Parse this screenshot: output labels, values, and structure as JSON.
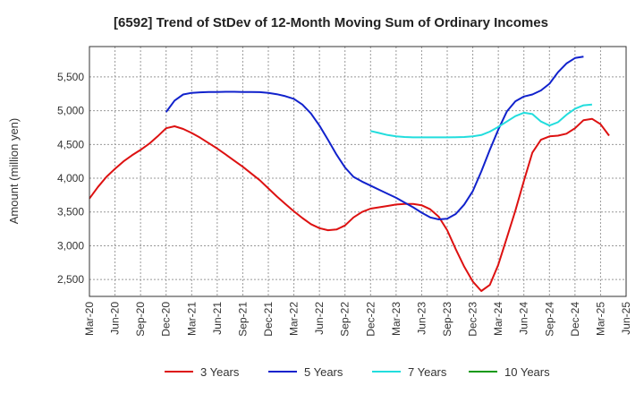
{
  "chart_data": {
    "type": "line",
    "title": "[6592]  Trend of StDev of 12-Month Moving Sum of Ordinary Incomes",
    "xlabel": "",
    "ylabel": "Amount (million yen)",
    "ylim": [
      2250,
      5950
    ],
    "yticks": [
      2500,
      3000,
      3500,
      4000,
      4500,
      5000,
      5500
    ],
    "ytick_labels": [
      "2,500",
      "3,000",
      "3,500",
      "4,000",
      "4,500",
      "5,000",
      "5,500"
    ],
    "xticks": [
      "Mar-20",
      "Jun-20",
      "Sep-20",
      "Dec-20",
      "Mar-21",
      "Jun-21",
      "Sep-21",
      "Dec-21",
      "Mar-22",
      "Jun-22",
      "Sep-22",
      "Dec-22",
      "Mar-23",
      "Jun-23",
      "Sep-23",
      "Dec-23",
      "Mar-24",
      "Jun-24",
      "Sep-24",
      "Dec-24",
      "Mar-25",
      "Jun-25"
    ],
    "grid": true,
    "legend_position": "bottom",
    "series": [
      {
        "name": "3 Years",
        "color": "#dd1111",
        "start": "Mar-20",
        "values": [
          3700,
          3870,
          4020,
          4140,
          4250,
          4340,
          4420,
          4510,
          4620,
          4740,
          4770,
          4730,
          4670,
          4600,
          4520,
          4440,
          4350,
          4260,
          4170,
          4070,
          3970,
          3850,
          3730,
          3620,
          3510,
          3410,
          3320,
          3260,
          3230,
          3240,
          3300,
          3420,
          3500,
          3550,
          3570,
          3590,
          3610,
          3620,
          3620,
          3600,
          3540,
          3430,
          3230,
          2950,
          2690,
          2470,
          2330,
          2420,
          2720,
          3120,
          3520,
          3960,
          4380,
          4570,
          4620,
          4630,
          4660,
          4740,
          4860,
          4880,
          4800,
          4630
        ]
      },
      {
        "name": "5 Years",
        "color": "#1122cc",
        "start": "Dec-20",
        "values": [
          4980,
          5150,
          5240,
          5265,
          5272,
          5276,
          5278,
          5280,
          5280,
          5278,
          5277,
          5275,
          5265,
          5245,
          5215,
          5175,
          5090,
          4960,
          4780,
          4570,
          4350,
          4160,
          4020,
          3950,
          3890,
          3830,
          3770,
          3710,
          3640,
          3570,
          3490,
          3420,
          3390,
          3400,
          3470,
          3610,
          3810,
          4100,
          4420,
          4720,
          4990,
          5140,
          5210,
          5240,
          5300,
          5400,
          5570,
          5700,
          5780,
          5800
        ]
      },
      {
        "name": "7 Years",
        "color": "#22dddd",
        "start": "Dec-22",
        "values": [
          4700,
          4670,
          4640,
          4620,
          4610,
          4605,
          4605,
          4605,
          4605,
          4605,
          4606,
          4610,
          4620,
          4640,
          4690,
          4760,
          4840,
          4920,
          4970,
          4950,
          4840,
          4780,
          4830,
          4940,
          5030,
          5080,
          5090
        ]
      },
      {
        "name": "10 Years",
        "color": "#119911",
        "start": "Mar-25",
        "values": []
      }
    ]
  }
}
